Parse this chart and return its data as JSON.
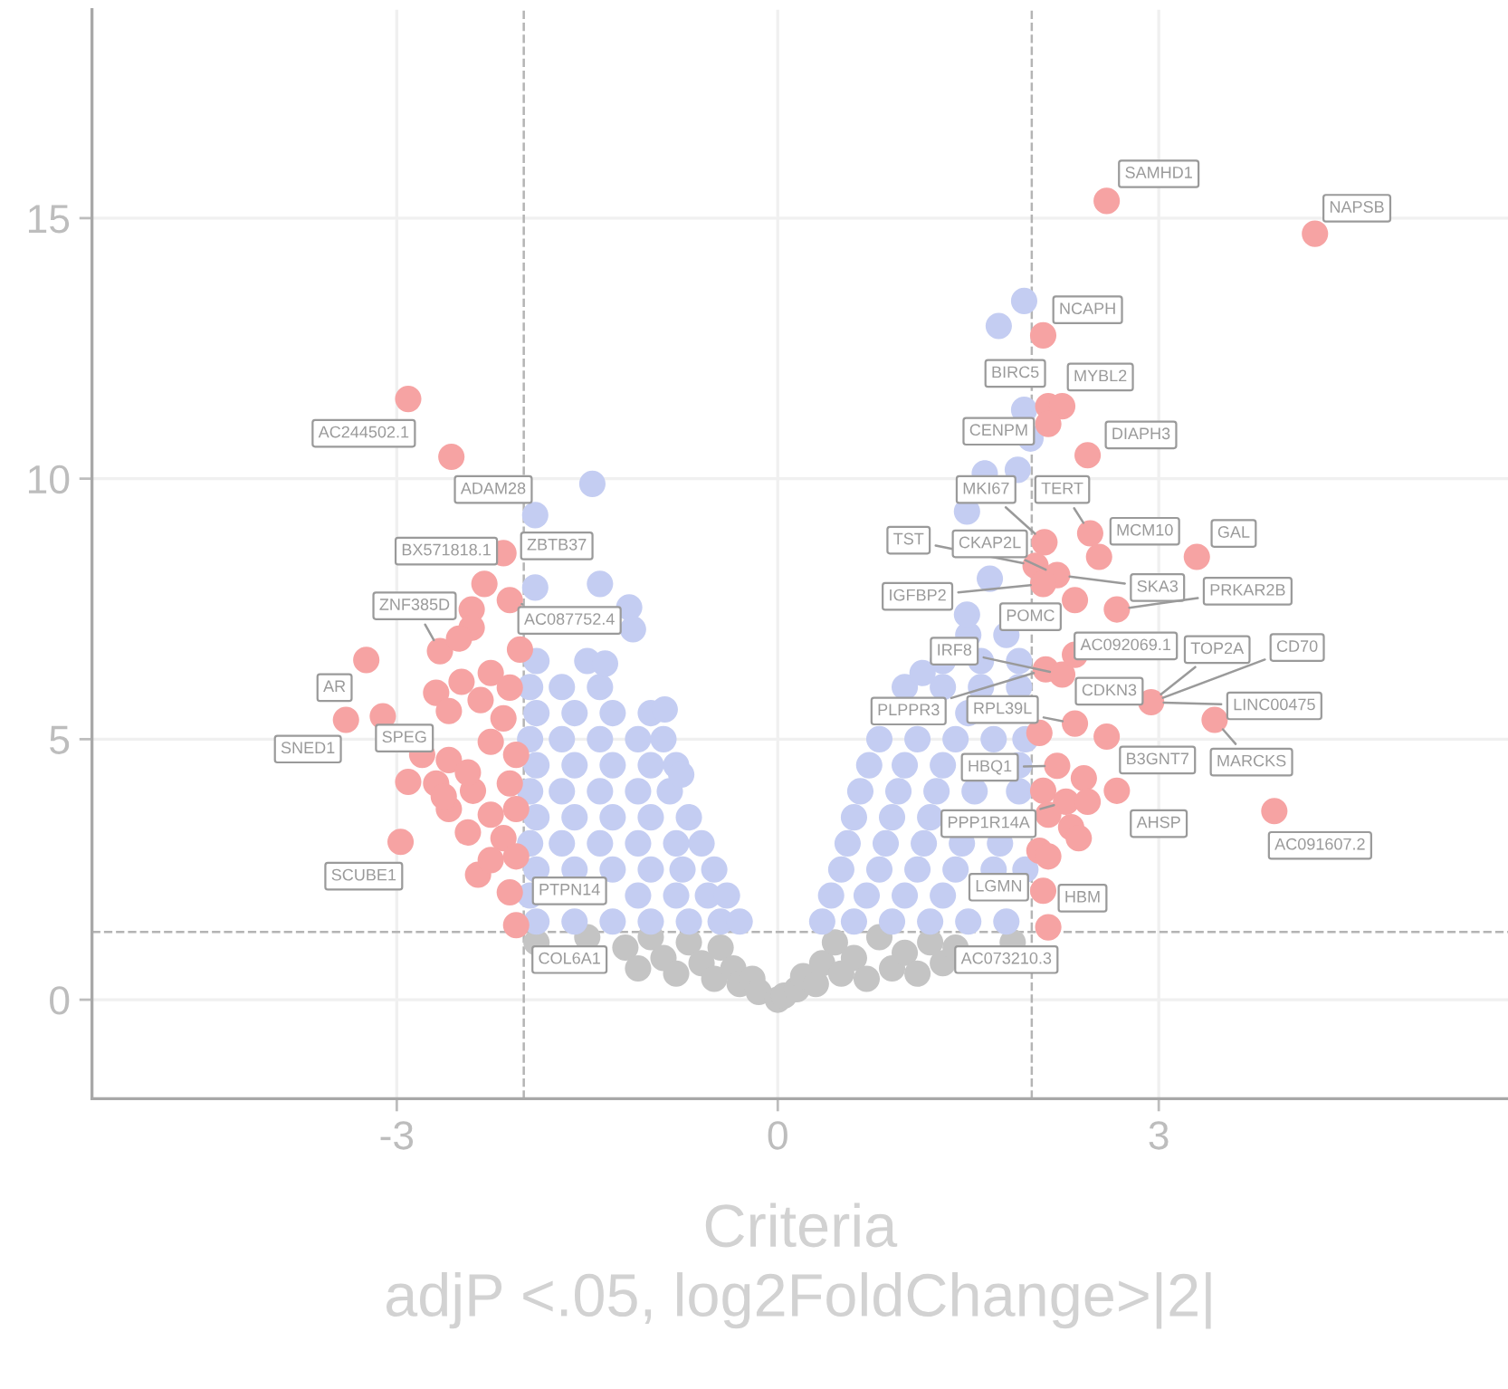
{
  "chart_data": {
    "type": "scatter",
    "xlabel": "Criteria\nadjP <.05, log2FoldChange>|2|",
    "xlim": [
      -5.4,
      5.75
    ],
    "ylim": [
      -1.9,
      19
    ],
    "xticks": [
      -3,
      0,
      3
    ],
    "yticks": [
      0,
      5,
      10,
      15
    ],
    "grid": true,
    "marker": "circle",
    "ref_lines": [
      {
        "axis": "x",
        "value": -2,
        "line_style": "dashed",
        "color": "#b4b4b4"
      },
      {
        "axis": "x",
        "value": 2,
        "line_style": "dashed",
        "color": "#b4b4b4"
      },
      {
        "axis": "y",
        "value": 1.3,
        "line_style": "dashed",
        "color": "#b4b4b4"
      }
    ],
    "series": [
      {
        "color": "#c4c4c4",
        "x": [
          -1.9,
          -1.5,
          -1.2,
          -1.1,
          -1.0,
          -0.9,
          -0.8,
          -0.7,
          -0.6,
          -0.5,
          -0.45,
          -0.35,
          -0.3,
          -0.2,
          -0.15,
          0,
          0.05,
          0.15,
          0.2,
          0.3,
          0.35,
          0.45,
          0.5,
          0.6,
          0.7,
          0.8,
          0.9,
          1.0,
          1.1,
          1.2,
          1.3,
          1.4,
          1.85
        ],
        "values": [
          1.1,
          1.2,
          1.0,
          0.6,
          1.2,
          0.8,
          0.5,
          1.1,
          0.7,
          0.4,
          1.0,
          0.6,
          0.3,
          0.4,
          0.15,
          0,
          0.08,
          0.2,
          0.45,
          0.3,
          0.7,
          1.1,
          0.5,
          0.8,
          0.4,
          1.2,
          0.6,
          0.9,
          0.5,
          1.1,
          0.7,
          1.0,
          1.1
        ]
      },
      {
        "color": "#c4cdf2",
        "x": [
          -1.9,
          -1.6,
          -1.3,
          -1.0,
          -0.7,
          -0.45,
          -0.3,
          -1.95,
          -1.1,
          -0.8,
          -0.55,
          -0.4,
          -1.9,
          -1.6,
          -1.3,
          -1.0,
          -0.75,
          -0.5,
          -1.95,
          -1.7,
          -1.4,
          -1.1,
          -0.8,
          -0.6,
          -1.9,
          -1.6,
          -1.3,
          -1.0,
          -0.7,
          -1.95,
          -1.7,
          -1.4,
          -1.1,
          -0.85,
          -1.9,
          -1.6,
          -1.3,
          -1.0,
          -0.8,
          -1.95,
          -1.7,
          -1.4,
          -1.1,
          -0.9,
          -1.9,
          -1.6,
          -1.3,
          -1.0,
          -1.95,
          -1.7,
          -1.4,
          -1.9,
          -1.5,
          -1.46,
          -1.91,
          -1.91,
          -1.4,
          -1.17,
          -1.14,
          -1.36,
          -0.89,
          -0.76,
          0.35,
          0.6,
          0.9,
          1.2,
          1.5,
          1.8,
          0.42,
          0.7,
          1.0,
          1.3,
          0.5,
          0.8,
          1.1,
          1.4,
          1.7,
          1.95,
          0.55,
          0.85,
          1.15,
          1.45,
          1.75,
          0.6,
          0.9,
          1.2,
          0.65,
          0.95,
          1.25,
          1.55,
          1.9,
          0.72,
          1.0,
          1.3,
          1.9,
          0.8,
          1.1,
          1.4,
          1.7,
          1.95,
          1.5,
          1.0,
          1.3,
          1.6,
          1.9,
          1.3,
          1.6,
          1.9,
          1.5,
          1.8,
          1.94,
          1.74,
          1.94,
          1.99,
          1.89,
          1.63,
          1.49,
          1.67,
          1.49,
          1.14
        ],
        "values": [
          1.5,
          1.5,
          1.5,
          1.5,
          1.5,
          1.5,
          1.5,
          2.0,
          2.0,
          2.0,
          2.0,
          2.0,
          2.5,
          2.5,
          2.5,
          2.5,
          2.5,
          2.5,
          3.0,
          3.0,
          3.0,
          3.0,
          3.0,
          3.0,
          3.5,
          3.5,
          3.5,
          3.5,
          3.5,
          4.0,
          4.0,
          4.0,
          4.0,
          4.0,
          4.5,
          4.5,
          4.5,
          4.5,
          4.5,
          5.0,
          5.0,
          5.0,
          5.0,
          5.0,
          5.5,
          5.5,
          5.5,
          5.5,
          6.0,
          6.0,
          6.0,
          6.5,
          6.5,
          9.9,
          9.3,
          7.91,
          7.98,
          7.53,
          7.11,
          6.45,
          5.57,
          4.32,
          1.5,
          1.5,
          1.5,
          1.5,
          1.5,
          1.5,
          2.0,
          2.0,
          2.0,
          2.0,
          2.5,
          2.5,
          2.5,
          2.5,
          2.5,
          2.5,
          3.0,
          3.0,
          3.0,
          3.0,
          3.0,
          3.5,
          3.5,
          3.5,
          4.0,
          4.0,
          4.0,
          4.0,
          4.0,
          4.5,
          4.5,
          4.5,
          4.5,
          5.0,
          5.0,
          5.0,
          5.0,
          5.0,
          5.5,
          6.0,
          6.0,
          6.0,
          6.0,
          6.5,
          6.5,
          6.5,
          7.0,
          7.0,
          13.41,
          12.93,
          11.32,
          10.77,
          10.17,
          10.1,
          9.37,
          8.08,
          7.39,
          6.27
        ]
      },
      {
        "color": "#f6a3a3",
        "x": [
          -2.91,
          -2.57,
          -2.16,
          -2.31,
          -2.11,
          -2.41,
          -2.41,
          -2.66,
          -2.51,
          -3.24,
          -2.03,
          -3.4,
          -3.11,
          -2.8,
          -2.91,
          -2.97,
          -2.36,
          -2.11,
          -2.06,
          -2.69,
          -2.49,
          -2.26,
          -2.11,
          -2.34,
          -2.59,
          -2.16,
          -2.26,
          -2.59,
          -2.69,
          -2.4,
          -2.11,
          -2.59,
          -2.26,
          -2.44,
          -2.16,
          -2.26,
          -2.06,
          -2.06,
          -2.06,
          -2.44,
          -2.63,
          2.59,
          4.23,
          2.09,
          2.13,
          2.24,
          2.13,
          2.44,
          2.46,
          2.53,
          3.3,
          2.1,
          2.03,
          2.2,
          2.34,
          2.67,
          2.11,
          2.24,
          2.34,
          2.94,
          2.34,
          2.59,
          3.44,
          2.67,
          2.41,
          2.2,
          2.09,
          2.27,
          2.44,
          2.31,
          2.37,
          2.13,
          2.06,
          2.13,
          2.09,
          2.13,
          3.91,
          2.06,
          2.09
        ],
        "values": [
          11.53,
          10.42,
          8.57,
          7.98,
          7.67,
          7.49,
          7.14,
          6.69,
          6.93,
          6.52,
          6.72,
          5.37,
          5.44,
          4.7,
          4.18,
          3.03,
          2.4,
          2.06,
          1.43,
          5.89,
          6.1,
          6.27,
          5.99,
          5.75,
          5.54,
          5.4,
          4.95,
          4.6,
          4.15,
          4.01,
          4.15,
          3.66,
          3.55,
          3.21,
          3.1,
          2.68,
          2.75,
          4.7,
          3.66,
          4.36,
          3.9,
          15.33,
          14.7,
          12.75,
          11.39,
          11.39,
          11.05,
          10.45,
          8.95,
          8.5,
          8.5,
          8.78,
          8.33,
          8.15,
          7.67,
          7.49,
          6.34,
          6.24,
          6.62,
          5.71,
          5.3,
          5.05,
          5.37,
          4.01,
          4.25,
          4.49,
          4.01,
          3.8,
          3.8,
          3.31,
          3.1,
          3.55,
          2.86,
          2.75,
          2.09,
          1.39,
          3.62,
          5.12,
          7.98
        ]
      }
    ],
    "annotations": [
      {
        "text": "SAMHD1",
        "x": 2.59,
        "y": 15.33
      },
      {
        "text": "NAPSB",
        "x": 4.23,
        "y": 14.7
      },
      {
        "text": "NCAPH",
        "x": 2.09,
        "y": 12.75
      },
      {
        "text": "BIRC5",
        "x": 2.13,
        "y": 11.39
      },
      {
        "text": "MYBL2",
        "x": 2.24,
        "y": 11.39
      },
      {
        "text": "CENPM",
        "x": 2.13,
        "y": 11.05
      },
      {
        "text": "DIAPH3",
        "x": 2.44,
        "y": 10.45
      },
      {
        "text": "MKI67",
        "x": 2.1,
        "y": 8.78
      },
      {
        "text": "TERT",
        "x": 2.46,
        "y": 8.95
      },
      {
        "text": "MCM10",
        "x": 2.53,
        "y": 8.5
      },
      {
        "text": "GAL",
        "x": 3.3,
        "y": 8.5
      },
      {
        "text": "TST",
        "x": 2.03,
        "y": 8.33
      },
      {
        "text": "CKAP2L",
        "x": 2.2,
        "y": 8.15
      },
      {
        "text": "IGFBP2",
        "x": 2.09,
        "y": 7.98
      },
      {
        "text": "SKA3",
        "x": 2.2,
        "y": 8.15
      },
      {
        "text": "PRKAR2B",
        "x": 2.67,
        "y": 7.49
      },
      {
        "text": "POMC",
        "x": 2.34,
        "y": 7.67
      },
      {
        "text": "AC092069.1",
        "x": 2.34,
        "y": 6.62
      },
      {
        "text": "TOP2A",
        "x": 2.94,
        "y": 5.71
      },
      {
        "text": "CD70",
        "x": 2.94,
        "y": 5.71
      },
      {
        "text": "IRF8",
        "x": 2.24,
        "y": 6.24
      },
      {
        "text": "PLPPR3",
        "x": 2.11,
        "y": 6.34
      },
      {
        "text": "RPL39L",
        "x": 2.34,
        "y": 5.3
      },
      {
        "text": "CDKN3",
        "x": 2.94,
        "y": 5.71
      },
      {
        "text": "LINC00475",
        "x": 2.94,
        "y": 5.71
      },
      {
        "text": "HBQ1",
        "x": 2.2,
        "y": 4.49
      },
      {
        "text": "B3GNT7",
        "x": 2.67,
        "y": 4.01
      },
      {
        "text": "MARCKS",
        "x": 3.44,
        "y": 5.37
      },
      {
        "text": "PPP1R14A",
        "x": 2.27,
        "y": 3.8
      },
      {
        "text": "AHSP",
        "x": 2.67,
        "y": 4.01
      },
      {
        "text": "AC091607.2",
        "x": 3.91,
        "y": 3.62
      },
      {
        "text": "LGMN",
        "x": 2.09,
        "y": 2.09
      },
      {
        "text": "HBM",
        "x": 2.09,
        "y": 2.09
      },
      {
        "text": "AC073210.3",
        "x": 2.13,
        "y": 1.39
      },
      {
        "text": "AC244502.1",
        "x": -2.91,
        "y": 11.53
      },
      {
        "text": "ADAM28",
        "x": -2.57,
        "y": 10.42
      },
      {
        "text": "BX571818.1",
        "x": -2.31,
        "y": 7.98
      },
      {
        "text": "ZBTB37",
        "x": -2.16,
        "y": 8.57
      },
      {
        "text": "ZNF385D",
        "x": -2.66,
        "y": 6.69
      },
      {
        "text": "AC087752.4",
        "x": -2.11,
        "y": 7.67
      },
      {
        "text": "AR",
        "x": -3.24,
        "y": 6.52
      },
      {
        "text": "SPEG",
        "x": -3.11,
        "y": 5.44
      },
      {
        "text": "SNED1",
        "x": -3.4,
        "y": 5.37
      },
      {
        "text": "SCUBE1",
        "x": -2.97,
        "y": 3.03
      },
      {
        "text": "PTPN14",
        "x": -2.06,
        "y": 1.43
      },
      {
        "text": "COL6A1",
        "x": -2.06,
        "y": 1.43
      }
    ]
  }
}
